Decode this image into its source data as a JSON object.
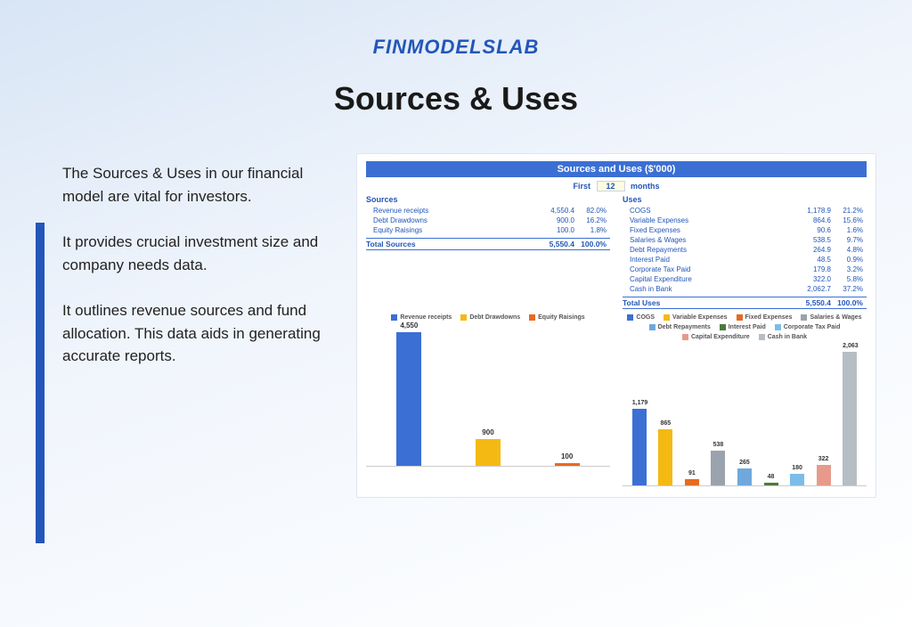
{
  "brand": "FINMODELSLAB",
  "title": "Sources & Uses",
  "paragraphs": [
    "The Sources & Uses in our financial model are vital for investors.",
    "It provides crucial investment size and company needs data.",
    "It outlines revenue sources and fund allocation. This data aids in generating accurate reports."
  ],
  "chart": {
    "header": "Sources and Uses ($'000)",
    "period_prefix": "First",
    "period_value": "12",
    "period_suffix": "months",
    "sources_label": "Sources",
    "uses_label": "Uses",
    "sources": [
      {
        "label": "Revenue receipts",
        "value": "4,550.4",
        "pct": "82.0%"
      },
      {
        "label": "Debt Drawdowns",
        "value": "900.0",
        "pct": "16.2%"
      },
      {
        "label": "Equity Raisings",
        "value": "100.0",
        "pct": "1.8%"
      }
    ],
    "uses": [
      {
        "label": "COGS",
        "value": "1,178.9",
        "pct": "21.2%"
      },
      {
        "label": "Variable Expenses",
        "value": "864.6",
        "pct": "15.6%"
      },
      {
        "label": "Fixed Expenses",
        "value": "90.6",
        "pct": "1.6%"
      },
      {
        "label": "Salaries & Wages",
        "value": "538.5",
        "pct": "9.7%"
      },
      {
        "label": "Debt Repayments",
        "value": "264.9",
        "pct": "4.8%"
      },
      {
        "label": "Interest Paid",
        "value": "48.5",
        "pct": "0.9%"
      },
      {
        "label": "Corporate Tax Paid",
        "value": "179.8",
        "pct": "3.2%"
      },
      {
        "label": "Capital Expenditure",
        "value": "322.0",
        "pct": "5.8%"
      },
      {
        "label": "Cash in Bank",
        "value": "2,062.7",
        "pct": "37.2%"
      }
    ],
    "total_sources_label": "Total Sources",
    "total_sources_value": "5,550.4",
    "total_sources_pct": "100.0%",
    "total_uses_label": "Total Uses",
    "total_uses_value": "5,550.4",
    "total_uses_pct": "100.0%",
    "left_chart": {
      "max": 4550,
      "bars": [
        {
          "label": "Revenue receipts",
          "value": 4550,
          "display": "4,550",
          "color": "#3b6fd4"
        },
        {
          "label": "Debt Drawdowns",
          "value": 900,
          "display": "900",
          "color": "#f5b914"
        },
        {
          "label": "Equity Raisings",
          "value": 100,
          "display": "100",
          "color": "#e86a1f"
        }
      ]
    },
    "right_chart": {
      "max": 2063,
      "bars": [
        {
          "label": "COGS",
          "value": 1179,
          "display": "1,179",
          "color": "#3b6fd4"
        },
        {
          "label": "Variable Expenses",
          "value": 865,
          "display": "865",
          "color": "#f5b914"
        },
        {
          "label": "Fixed Expenses",
          "value": 91,
          "display": "91",
          "color": "#e86a1f"
        },
        {
          "label": "Salaries & Wages",
          "value": 538,
          "display": "538",
          "color": "#9aa3ad"
        },
        {
          "label": "Debt Repayments",
          "value": 265,
          "display": "265",
          "color": "#6fa8dc"
        },
        {
          "label": "Interest Paid",
          "value": 48,
          "display": "48",
          "color": "#4a7a3b"
        },
        {
          "label": "Corporate Tax Paid",
          "value": 180,
          "display": "180",
          "color": "#7bbde8"
        },
        {
          "label": "Capital Expenditure",
          "value": 322,
          "display": "322",
          "color": "#e89a8a"
        },
        {
          "label": "Cash in Bank",
          "value": 2063,
          "display": "2,063",
          "color": "#b7bdc4"
        }
      ]
    }
  },
  "colors": {
    "accent": "#2356b8",
    "bg_gradient_from": "#d8e5f5",
    "bg_gradient_to": "#ffffff"
  }
}
